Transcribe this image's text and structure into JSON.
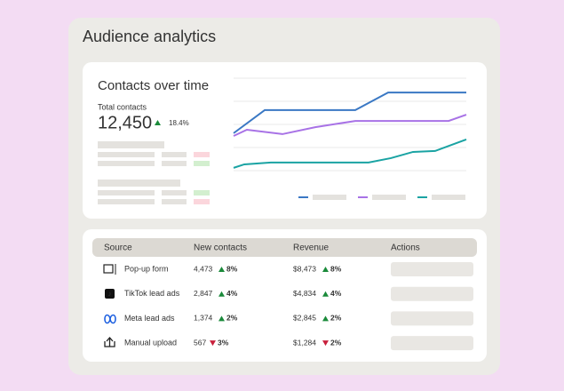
{
  "header": {
    "title": "Audience analytics"
  },
  "summary": {
    "title": "Contacts over time",
    "label": "Total contacts",
    "total": "12,450",
    "change": "18.4%",
    "trend": "up"
  },
  "chart_data": {
    "type": "line",
    "xlim": [
      0,
      100
    ],
    "ylim": [
      0,
      4
    ],
    "series": [
      {
        "color": "#3a78c4",
        "x": [
          0,
          13.4,
          52.3,
          66.4,
          100
        ],
        "values": [
          1.62,
          2.62,
          2.62,
          3.38,
          3.38
        ]
      },
      {
        "color": "#a872e6",
        "x": [
          0,
          5.7,
          21,
          35.1,
          52.3,
          92.4,
          100
        ],
        "values": [
          1.5,
          1.77,
          1.58,
          1.88,
          2.15,
          2.15,
          2.42
        ]
      },
      {
        "color": "#1aa3a3",
        "x": [
          0,
          4.6,
          16,
          58,
          67.6,
          77.1,
          86.6,
          100
        ],
        "values": [
          0.12,
          0.27,
          0.35,
          0.35,
          0.54,
          0.81,
          0.85,
          1.35
        ]
      }
    ]
  },
  "table": {
    "columns": [
      "Source",
      "New contacts",
      "Revenue",
      "Actions"
    ],
    "rows": [
      {
        "source": "Pop-up form",
        "contacts": "4,473",
        "contacts_change": "8%",
        "contacts_trend": "up",
        "revenue": "$8,473",
        "revenue_change": "8%",
        "revenue_trend": "up"
      },
      {
        "source": "TikTok lead ads",
        "contacts": "2,847",
        "contacts_change": "4%",
        "contacts_trend": "up",
        "revenue": "$4,834",
        "revenue_change": "4%",
        "revenue_trend": "up"
      },
      {
        "source": "Meta lead ads",
        "contacts": "1,374",
        "contacts_change": "2%",
        "contacts_trend": "up",
        "revenue": "$2,845",
        "revenue_change": "2%",
        "revenue_trend": "up"
      },
      {
        "source": "Manual upload",
        "contacts": "567",
        "contacts_change": "3%",
        "contacts_trend": "down",
        "revenue": "$1,284",
        "revenue_change": "2%",
        "revenue_trend": "down"
      }
    ]
  }
}
